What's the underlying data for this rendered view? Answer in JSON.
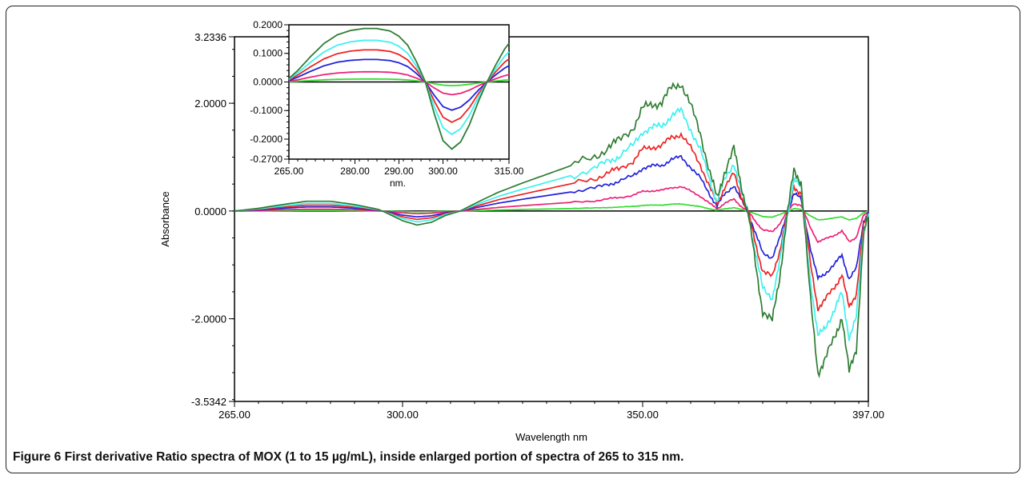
{
  "chart_data": {
    "type": "line",
    "xlabel": "Wavelength  nm",
    "ylabel": "Absorbance",
    "xlim": [
      265,
      397
    ],
    "ylim": [
      -3.5342,
      3.2336
    ],
    "xticks": [
      "265.00",
      "300.00",
      "350.00",
      "397.00"
    ],
    "yticks": [
      "3.2336",
      "2.0000",
      "0.0000",
      "-2.0000",
      "-3.5342"
    ],
    "baseline": 0,
    "series": [
      {
        "color": "#2e7d32",
        "scale": 1.0
      },
      {
        "color": "#3ff0f0",
        "scale": 0.78
      },
      {
        "color": "#ee2222",
        "scale": 0.6
      },
      {
        "color": "#2222dd",
        "scale": 0.42
      },
      {
        "color": "#ee2277",
        "scale": 0.19
      },
      {
        "color": "#33dd33",
        "scale": 0.055
      }
    ],
    "profile": {
      "x": [
        265,
        270,
        275,
        280,
        285,
        290,
        295,
        297,
        300,
        303,
        306,
        309,
        312,
        316,
        320,
        325,
        330,
        335,
        340,
        343,
        345,
        348,
        350,
        352,
        354,
        356,
        358,
        360,
        362,
        364,
        365.5,
        367,
        369,
        370.5,
        372,
        373.5,
        375,
        377,
        378.5,
        380,
        381.5,
        383,
        385,
        386.5,
        388,
        390,
        391.5,
        393,
        394.5,
        396,
        397
      ],
      "y": [
        0,
        0.05,
        0.12,
        0.18,
        0.18,
        0.12,
        0.03,
        -0.05,
        -0.18,
        -0.26,
        -0.21,
        -0.08,
        0.0,
        0.18,
        0.35,
        0.52,
        0.68,
        0.84,
        1.0,
        1.2,
        1.3,
        1.55,
        1.9,
        1.98,
        2.02,
        2.28,
        2.38,
        1.95,
        1.45,
        0.72,
        0.22,
        0.72,
        1.15,
        0.48,
        -0.05,
        -1.0,
        -1.85,
        -2.05,
        -1.25,
        -0.15,
        0.75,
        0.55,
        -1.7,
        -3.0,
        -2.75,
        -2.35,
        -1.95,
        -3.0,
        -2.55,
        -0.45,
        -0.1
      ]
    },
    "inset": {
      "xlabel": "nm.",
      "xlim": [
        265,
        315
      ],
      "ylim": [
        -0.27,
        0.2
      ],
      "xticks": [
        "265.00",
        "280.00",
        "290.00",
        "300.00",
        "315.00"
      ],
      "yticks": [
        "0.2000",
        "0.1000",
        "0.0000",
        "-0.1000",
        "-0.2000",
        "-0.2700"
      ],
      "profile": {
        "x": [
          265,
          267,
          270,
          273,
          276,
          279,
          282,
          285,
          288,
          290,
          292,
          294,
          296,
          298,
          300,
          302,
          304,
          306,
          308,
          310,
          312,
          314,
          315
        ],
        "y": [
          0.012,
          0.04,
          0.09,
          0.135,
          0.165,
          0.18,
          0.187,
          0.187,
          0.178,
          0.16,
          0.128,
          0.07,
          0.0,
          -0.11,
          -0.205,
          -0.235,
          -0.21,
          -0.15,
          -0.07,
          0.0,
          0.06,
          0.115,
          0.135
        ]
      }
    }
  },
  "caption": {
    "label": "Figure 6",
    "text": "First derivative Ratio spectra of MOX (1 to 15 µg/mL), inside enlarged portion of spectra of 265 to 315 nm."
  }
}
